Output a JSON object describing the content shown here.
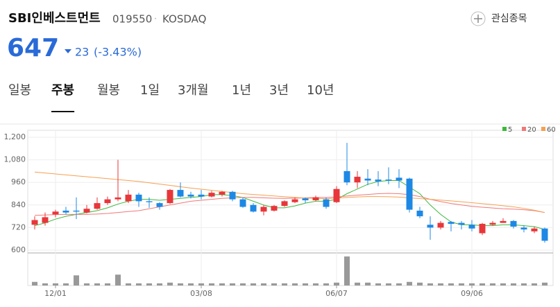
{
  "header": {
    "title": "SBI인베스트먼트",
    "code": "019550",
    "separator": "·",
    "market": "KOSDAQ",
    "watch": "관심종목",
    "price": "647",
    "change": "23",
    "change_pct": "(-3.43%)"
  },
  "tabs": [
    "일봉",
    "주봉",
    "월봉",
    "1일",
    "3개월",
    "1년",
    "3년",
    "10년"
  ],
  "active_tab": 1,
  "chart_data": {
    "type": "candlestick",
    "categories": [
      null,
      null,
      "12/01",
      null,
      null,
      null,
      null,
      null,
      null,
      null,
      null,
      null,
      null,
      null,
      null,
      null,
      "03/08",
      null,
      null,
      null,
      null,
      null,
      null,
      null,
      null,
      null,
      null,
      null,
      null,
      "06/07",
      null,
      null,
      null,
      null,
      null,
      null,
      null,
      null,
      null,
      null,
      null,
      null,
      "09/06",
      null,
      null,
      null,
      null,
      null,
      null,
      null
    ],
    "open": [
      735,
      745,
      790,
      810,
      810,
      800,
      820,
      850,
      870,
      860,
      895,
      860,
      850,
      850,
      920,
      895,
      895,
      885,
      895,
      910,
      870,
      840,
      805,
      810,
      835,
      855,
      875,
      865,
      870,
      855,
      1020,
      960,
      980,
      975,
      975,
      985,
      980,
      810,
      735,
      720,
      750,
      745,
      735,
      690,
      735,
      745,
      755,
      720,
      700,
      715
    ],
    "high": [
      780,
      800,
      815,
      830,
      880,
      840,
      880,
      885,
      1080,
      920,
      905,
      880,
      855,
      925,
      960,
      910,
      920,
      915,
      915,
      915,
      880,
      850,
      840,
      840,
      865,
      880,
      880,
      890,
      880,
      940,
      1170,
      1020,
      1030,
      1020,
      1040,
      1030,
      985,
      830,
      780,
      755,
      755,
      755,
      760,
      745,
      755,
      770,
      760,
      730,
      725,
      720
    ],
    "low": [
      710,
      730,
      775,
      790,
      765,
      795,
      815,
      840,
      860,
      850,
      830,
      825,
      815,
      845,
      880,
      875,
      870,
      880,
      885,
      860,
      825,
      800,
      785,
      805,
      830,
      850,
      850,
      860,
      820,
      850,
      945,
      930,
      945,
      940,
      950,
      930,
      800,
      770,
      655,
      710,
      700,
      710,
      700,
      680,
      730,
      745,
      715,
      695,
      690,
      640
    ],
    "close": [
      760,
      775,
      805,
      800,
      805,
      820,
      850,
      870,
      880,
      895,
      860,
      855,
      830,
      920,
      885,
      885,
      885,
      905,
      910,
      870,
      830,
      805,
      830,
      835,
      860,
      870,
      865,
      880,
      830,
      925,
      960,
      990,
      970,
      965,
      970,
      970,
      815,
      780,
      720,
      745,
      740,
      735,
      715,
      740,
      745,
      755,
      725,
      710,
      715,
      650
    ],
    "up_color": "#e8363a",
    "down_color": "#1e88e5",
    "ylim": [
      600,
      1200
    ],
    "yticks": [
      600,
      720,
      840,
      {
        "value": 960,
        "label": "960"
      },
      {
        "value": 1080,
        "label": "1,080"
      },
      {
        "value": 1200,
        "label": "1,200"
      }
    ],
    "series": [
      {
        "name": "5",
        "color": "#3cb93c",
        "values": [
          730,
          745,
          765,
          780,
          790,
          800,
          810,
          825,
          845,
          860,
          870,
          870,
          865,
          870,
          875,
          880,
          885,
          895,
          895,
          890,
          880,
          860,
          840,
          825,
          825,
          835,
          850,
          860,
          860,
          870,
          900,
          925,
          950,
          965,
          970,
          970,
          935,
          900,
          840,
          790,
          750,
          735,
          735,
          730,
          730,
          735,
          735,
          730,
          725,
          710
        ]
      },
      {
        "name": "20",
        "color": "#f07878",
        "values": [
          785,
          787,
          789,
          790,
          790,
          790,
          792,
          795,
          800,
          805,
          810,
          820,
          830,
          840,
          850,
          860,
          865,
          870,
          875,
          878,
          880,
          880,
          878,
          876,
          875,
          876,
          878,
          880,
          880,
          882,
          888,
          892,
          896,
          900,
          902,
          900,
          895,
          885,
          870,
          858,
          848,
          840,
          833,
          828,
          824,
          820,
          818,
          815,
          810,
          800
        ]
      },
      {
        "name": "60",
        "color": "#f5a050",
        "values": [
          1015,
          1010,
          1005,
          1000,
          995,
          990,
          985,
          980,
          975,
          970,
          965,
          958,
          951,
          944,
          937,
          930,
          924,
          918,
          912,
          906,
          900,
          896,
          892,
          888,
          884,
          880,
          877,
          875,
          874,
          876,
          880,
          883,
          885,
          885,
          884,
          882,
          878,
          874,
          870,
          866,
          862,
          857,
          852,
          847,
          842,
          836,
          830,
          822,
          812,
          800
        ]
      }
    ],
    "volume": {
      "color": "#999999",
      "ylim": [
        0,
        42
      ],
      "values": [
        5,
        3,
        3,
        3,
        14,
        3,
        3,
        3,
        15,
        3,
        3,
        3,
        3,
        4,
        3,
        3,
        3,
        3,
        3,
        3,
        3,
        3,
        3,
        3,
        3,
        3,
        3,
        3,
        3,
        4,
        40,
        4,
        4,
        3,
        3,
        3,
        5,
        4,
        3,
        3,
        3,
        3,
        3,
        3,
        3,
        3,
        3,
        3,
        3,
        4
      ]
    }
  }
}
